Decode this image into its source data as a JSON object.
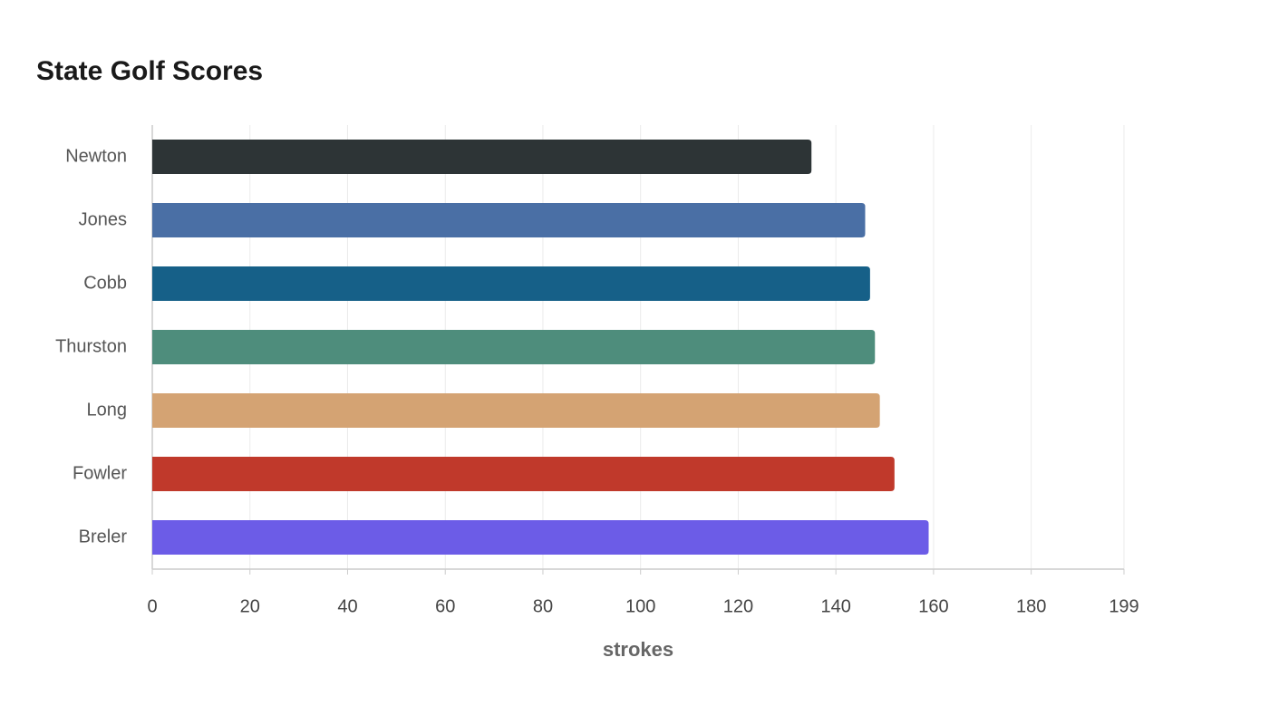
{
  "chart_data": {
    "type": "bar",
    "orientation": "horizontal",
    "title": "State Golf Scores",
    "categories": [
      "Newton",
      "Jones",
      "Cobb",
      "Thurston",
      "Long",
      "Fowler",
      "Breler"
    ],
    "values": [
      135,
      146,
      147,
      148,
      149,
      152,
      159
    ],
    "colors": [
      "#2d3436",
      "#4a6fa5",
      "#166088",
      "#4e8d7c",
      "#d4a373",
      "#c0392b",
      "#6c5ce7"
    ],
    "x_label": "strokes",
    "xlim": [
      0,
      199
    ],
    "xticks": [
      0,
      20,
      40,
      60,
      80,
      100,
      120,
      140,
      160,
      180,
      199
    ],
    "grid": true
  }
}
